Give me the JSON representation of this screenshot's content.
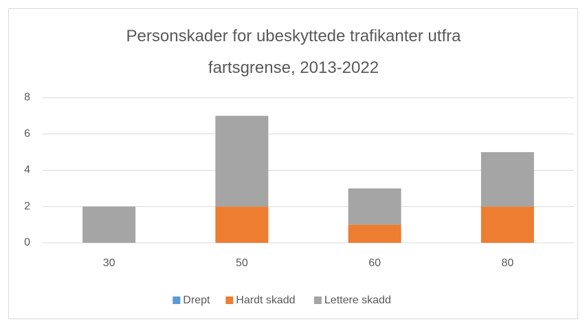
{
  "chart_data": {
    "type": "stacked_bar",
    "title": "Personskader for ubeskyttede trafikanter utfra fartsgrense, 2013-2022",
    "categories": [
      "30",
      "50",
      "60",
      "80"
    ],
    "series": [
      {
        "name": "Drept",
        "color": "#5b9bd5",
        "values": [
          0,
          0,
          0,
          0
        ]
      },
      {
        "name": "Hardt skadd",
        "color": "#ed7d31",
        "values": [
          0,
          2,
          1,
          2
        ]
      },
      {
        "name": "Lettere skadd",
        "color": "#a5a5a5",
        "values": [
          2,
          5,
          2,
          3
        ]
      }
    ],
    "ylim": [
      0,
      8
    ],
    "yticks": [
      0,
      2,
      4,
      6,
      8
    ],
    "grid": true,
    "legend": "bottom"
  }
}
